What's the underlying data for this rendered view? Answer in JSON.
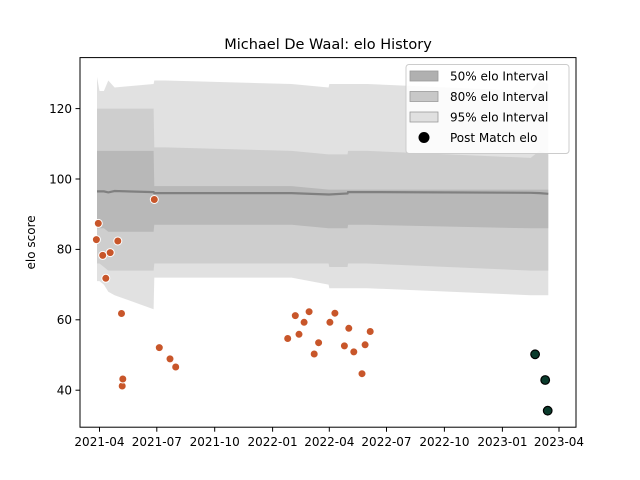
{
  "chart_data": {
    "type": "scatter",
    "title": "Michael De Waal: elo History",
    "xlabel": "",
    "ylabel": "elo score",
    "xlim": [
      "2021-03-01",
      "2023-04-28"
    ],
    "ylim": [
      29.5,
      134.5
    ],
    "x_ticks": [
      "2021-04",
      "2021-07",
      "2021-10",
      "2022-01",
      "2022-04",
      "2022-07",
      "2022-10",
      "2023-01",
      "2023-04"
    ],
    "y_ticks": [
      40,
      60,
      80,
      100,
      120
    ],
    "grid": false,
    "legend_position": "top-right",
    "legend": [
      {
        "label": "50% elo Interval",
        "kind": "band",
        "color": "#b0b0b0"
      },
      {
        "label": "80% elo Interval",
        "kind": "band",
        "color": "#c8c8c8"
      },
      {
        "label": "95% elo Interval",
        "kind": "band",
        "color": "#e0e0e0"
      },
      {
        "label": "Post Match elo",
        "kind": "marker",
        "color": "#000000"
      }
    ],
    "colors": {
      "past_match": "#c8562a",
      "recent_match": "#0b3b2c",
      "center_line": "#808080"
    },
    "band_x": [
      "2021-03-28",
      "2021-04-01",
      "2021-04-08",
      "2021-04-15",
      "2021-04-25",
      "2021-06-26",
      "2021-06-27",
      "2021-07-15",
      "2022-01-31",
      "2022-03-31",
      "2022-04-01",
      "2022-04-30",
      "2022-05-01",
      "2022-06-01",
      "2023-02-15",
      "2023-03-01",
      "2023-03-15"
    ],
    "bands": {
      "p95": {
        "upper": [
          129,
          125,
          125,
          128,
          126,
          127,
          128,
          128,
          127,
          126,
          127,
          127,
          127,
          127,
          125,
          128,
          127
        ],
        "lower": [
          71,
          71,
          70,
          68,
          67,
          63,
          72,
          72,
          72,
          70,
          69,
          69,
          69,
          69,
          67,
          67,
          67
        ]
      },
      "p80": {
        "upper": [
          120,
          120,
          120,
          120,
          120,
          120,
          109,
          109,
          108,
          107,
          107,
          107,
          108,
          108,
          106,
          108,
          107
        ],
        "lower": [
          76,
          76,
          75,
          74,
          74,
          74,
          76,
          76,
          76,
          76,
          75,
          75,
          76,
          76,
          74,
          74,
          74
        ]
      },
      "p50": {
        "upper": [
          108,
          108,
          108,
          108,
          108,
          108,
          98,
          98,
          98,
          97,
          97,
          97,
          97,
          97,
          97,
          97,
          97
        ],
        "lower": [
          86,
          86,
          86,
          85,
          85,
          85,
          87,
          87,
          87,
          86,
          86,
          86,
          87,
          87,
          86,
          86,
          86
        ]
      },
      "center": [
        96.5,
        96.5,
        96.5,
        96.2,
        96.6,
        96.3,
        96.0,
        96.0,
        96.0,
        95.6,
        95.6,
        95.9,
        96.3,
        96.3,
        96.1,
        96.0,
        95.8
      ]
    },
    "series": [
      {
        "role": "past",
        "x": [
          "2021-03-27",
          "2021-03-30",
          "2021-04-06",
          "2021-04-11",
          "2021-04-18",
          "2021-04-30",
          "2021-05-06",
          "2021-05-07",
          "2021-05-08",
          "2021-06-27",
          "2021-07-05",
          "2021-07-22",
          "2021-07-31",
          "2022-01-25",
          "2022-02-06",
          "2022-02-12",
          "2022-02-20",
          "2022-02-28",
          "2022-03-08",
          "2022-03-15",
          "2022-04-02",
          "2022-04-10",
          "2022-04-25",
          "2022-05-02",
          "2022-05-10",
          "2022-05-23",
          "2022-05-28",
          "2022-06-05"
        ],
        "y": [
          82.8,
          87.4,
          78.3,
          71.8,
          79.1,
          82.4,
          61.8,
          41.2,
          43.2,
          94.2,
          52.1,
          48.9,
          46.6,
          54.7,
          61.2,
          55.9,
          59.3,
          62.3,
          50.3,
          53.5,
          59.3,
          61.9,
          52.6,
          57.6,
          50.9,
          44.7,
          52.9,
          56.7
        ]
      },
      {
        "role": "recent",
        "x": [
          "2023-02-22",
          "2023-03-10",
          "2023-03-14"
        ],
        "y": [
          50.2,
          42.9,
          34.2
        ]
      }
    ]
  }
}
